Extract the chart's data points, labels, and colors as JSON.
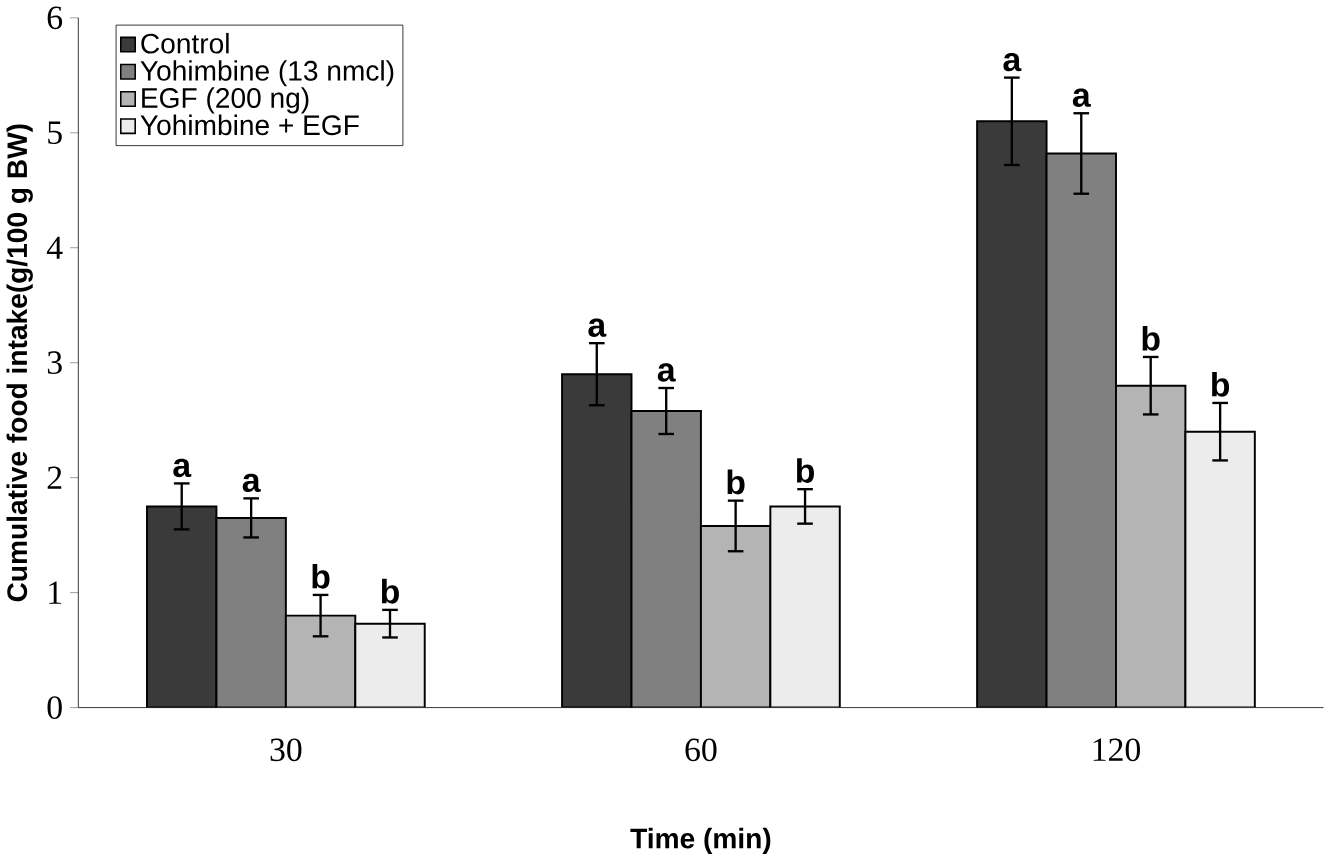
{
  "chart_data": {
    "type": "bar",
    "xlabel": "Time (min)",
    "ylabel": "Cumulative food intake(g/100 g BW)",
    "categories": [
      "30",
      "60",
      "120"
    ],
    "series": [
      {
        "name": "Control",
        "color": "#3a3a3a",
        "values": [
          1.75,
          2.9,
          5.1
        ],
        "errors": [
          0.2,
          0.27,
          0.38
        ],
        "value_labels": [
          "a",
          "a",
          "a"
        ]
      },
      {
        "name": "Yohimbine (13 nmcl)",
        "color": "#808080",
        "values": [
          1.65,
          2.58,
          4.82
        ],
        "errors": [
          0.17,
          0.2,
          0.35
        ],
        "value_labels": [
          "a",
          "a",
          "a"
        ]
      },
      {
        "name": "EGF (200 ng)",
        "color": "#b4b4b4",
        "values": [
          0.8,
          1.58,
          2.8
        ],
        "errors": [
          0.18,
          0.22,
          0.25
        ],
        "value_labels": [
          "b",
          "b",
          "b"
        ]
      },
      {
        "name": "Yohimbine + EGF",
        "color": "#ececec",
        "values": [
          0.73,
          1.75,
          2.4
        ],
        "errors": [
          0.12,
          0.15,
          0.25
        ],
        "value_labels": [
          "b",
          "b",
          "b"
        ]
      }
    ],
    "ylim": [
      0,
      6
    ],
    "yticks": [
      0,
      1,
      2,
      3,
      4,
      5,
      6
    ],
    "legend": "top left",
    "grid": false
  }
}
